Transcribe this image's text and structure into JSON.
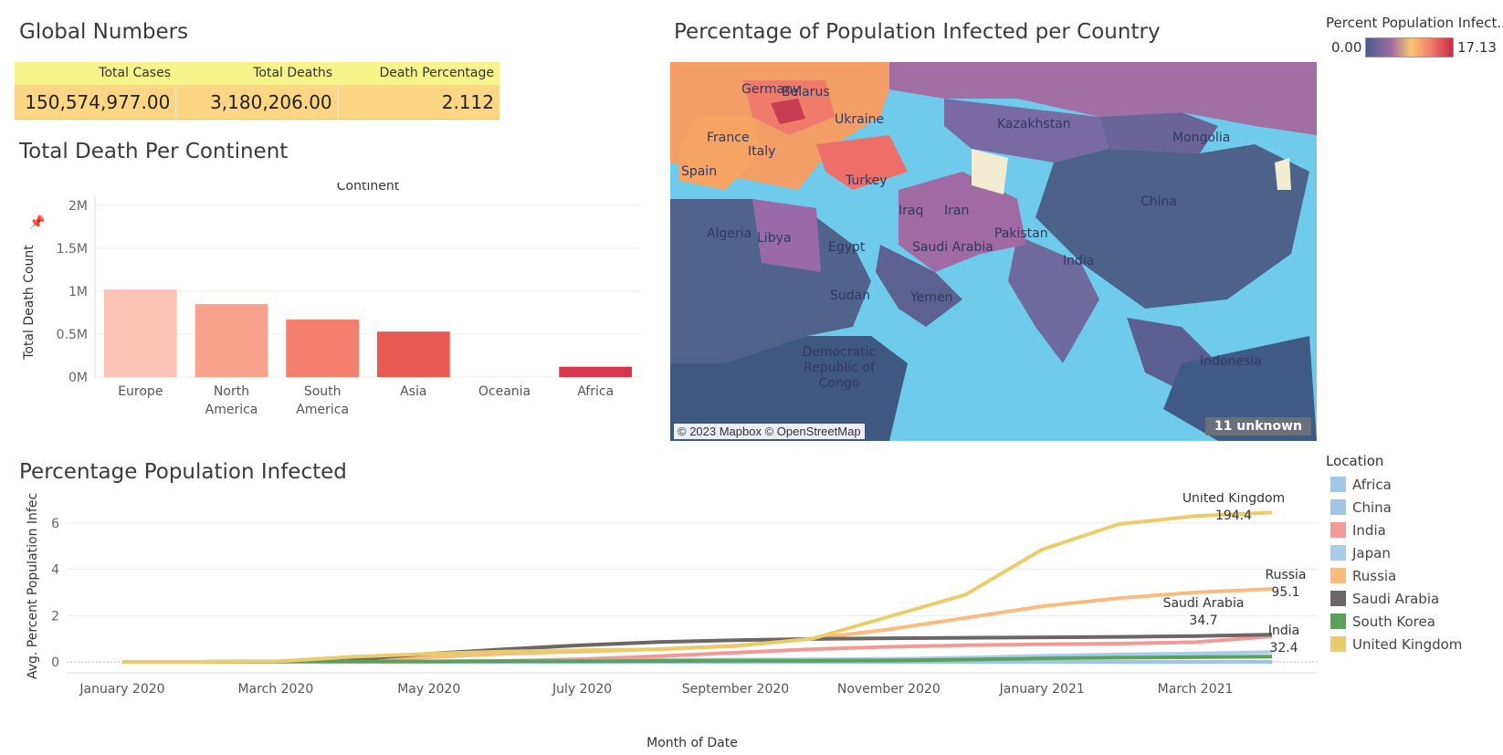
{
  "global_numbers": {
    "title": "Global Numbers",
    "headers": [
      "Total Cases",
      "Total Deaths",
      "Death Percentage"
    ],
    "values": [
      "150,574,977.00",
      "3,180,206.00",
      "2.112"
    ]
  },
  "continent_section": {
    "title": "Total Death Per Continent"
  },
  "map_section": {
    "title": "Percentage of Population Infected per Country",
    "credit": "© 2023 Mapbox © OpenStreetMap",
    "unknown_badge": "11 unknown",
    "legend_title": "Percent Population Infect..",
    "legend_min": "0.00",
    "legend_max": "17.13",
    "country_labels": [
      "Germany",
      "Belarus",
      "Ukraine",
      "Kazakhstan",
      "Mongolia",
      "France",
      "Italy",
      "Spain",
      "Turkey",
      "China",
      "Iraq",
      "Iran",
      "Algeria",
      "Libya",
      "Egypt",
      "Saudi Arabia",
      "Pakistan",
      "India",
      "Sudan",
      "Yemen",
      "Democratic Republic of Congo",
      "Indonesia"
    ]
  },
  "infected_section": {
    "title": "Percentage Population Infected"
  },
  "chart_data": [
    {
      "type": "bar",
      "title": "Continent",
      "ylabel": "Total Death Count",
      "categories": [
        "Europe",
        "North America",
        "South America",
        "Asia",
        "Oceania",
        "Africa"
      ],
      "values": [
        1020000,
        850000,
        670000,
        530000,
        1000,
        120000
      ],
      "bar_colors": [
        "#fdc4b6",
        "#f9a38e",
        "#f3806c",
        "#e95a53",
        "#e6404a",
        "#d7364c"
      ],
      "yticks": [
        "0M",
        "0.5M",
        "1M",
        "1.5M",
        "2M"
      ],
      "ylim": [
        0,
        2000000
      ],
      "grid": true
    },
    {
      "type": "line",
      "xlabel": "Month of Date",
      "ylabel": "Avg. Percent Population Infec..",
      "x": [
        "2020-01",
        "2020-02",
        "2020-03",
        "2020-04",
        "2020-05",
        "2020-06",
        "2020-07",
        "2020-08",
        "2020-09",
        "2020-10",
        "2020-11",
        "2020-12",
        "2021-01",
        "2021-02",
        "2021-03",
        "2021-04"
      ],
      "xticks": [
        "January 2020",
        "March 2020",
        "May 2020",
        "July 2020",
        "September 2020",
        "November 2020",
        "January 2021",
        "March 2021"
      ],
      "yticks": [
        "0",
        "2",
        "4",
        "6"
      ],
      "ylim": [
        0,
        6.9
      ],
      "series": [
        {
          "name": "Africa",
          "color": "#a1c8e8",
          "values": [
            0,
            0,
            0,
            0.01,
            0.02,
            0.04,
            0.07,
            0.09,
            0.1,
            0.11,
            0.13,
            0.15,
            0.18,
            0.2,
            0.22,
            0.23
          ]
        },
        {
          "name": "China",
          "color": "#9ec5e6",
          "values": [
            0,
            0,
            0,
            0,
            0,
            0,
            0,
            0,
            0,
            0,
            0,
            0,
            0,
            0,
            0,
            0
          ]
        },
        {
          "name": "India",
          "color": "#f39a99",
          "values": [
            0,
            0,
            0,
            0,
            0.01,
            0.04,
            0.12,
            0.25,
            0.4,
            0.55,
            0.65,
            0.72,
            0.76,
            0.79,
            0.85,
            1.1
          ]
        },
        {
          "name": "Japan",
          "color": "#a8cce9",
          "values": [
            0,
            0,
            0,
            0.01,
            0.01,
            0.02,
            0.03,
            0.05,
            0.06,
            0.08,
            0.12,
            0.18,
            0.26,
            0.32,
            0.36,
            0.42
          ]
        },
        {
          "name": "Russia",
          "color": "#f9bb7e",
          "values": [
            0,
            0,
            0.01,
            0.05,
            0.2,
            0.35,
            0.45,
            0.55,
            0.7,
            1.0,
            1.4,
            1.9,
            2.4,
            2.75,
            3.0,
            3.15
          ]
        },
        {
          "name": "Saudi Arabia",
          "color": "#6d6566",
          "values": [
            0,
            0,
            0.01,
            0.1,
            0.35,
            0.55,
            0.72,
            0.86,
            0.94,
            0.99,
            1.02,
            1.04,
            1.06,
            1.08,
            1.11,
            1.18
          ]
        },
        {
          "name": "South Korea",
          "color": "#5aa15a",
          "values": [
            0,
            0,
            0.02,
            0.02,
            0.02,
            0.03,
            0.03,
            0.04,
            0.05,
            0.05,
            0.06,
            0.1,
            0.15,
            0.18,
            0.2,
            0.23
          ]
        },
        {
          "name": "United Kingdom",
          "color": "#eacd6a",
          "values": [
            0,
            0,
            0.02,
            0.22,
            0.35,
            0.45,
            0.5,
            0.55,
            0.68,
            1.0,
            1.95,
            2.9,
            4.85,
            5.95,
            6.3,
            6.45
          ]
        }
      ],
      "annotations": [
        {
          "label": "United Kingdom",
          "value": "194.4"
        },
        {
          "label": "Russia",
          "value": "95.1"
        },
        {
          "label": "Saudi Arabia",
          "value": "34.7"
        },
        {
          "label": "India",
          "value": "32.4"
        }
      ],
      "legend_title": "Location",
      "legend_placement": "right"
    }
  ]
}
